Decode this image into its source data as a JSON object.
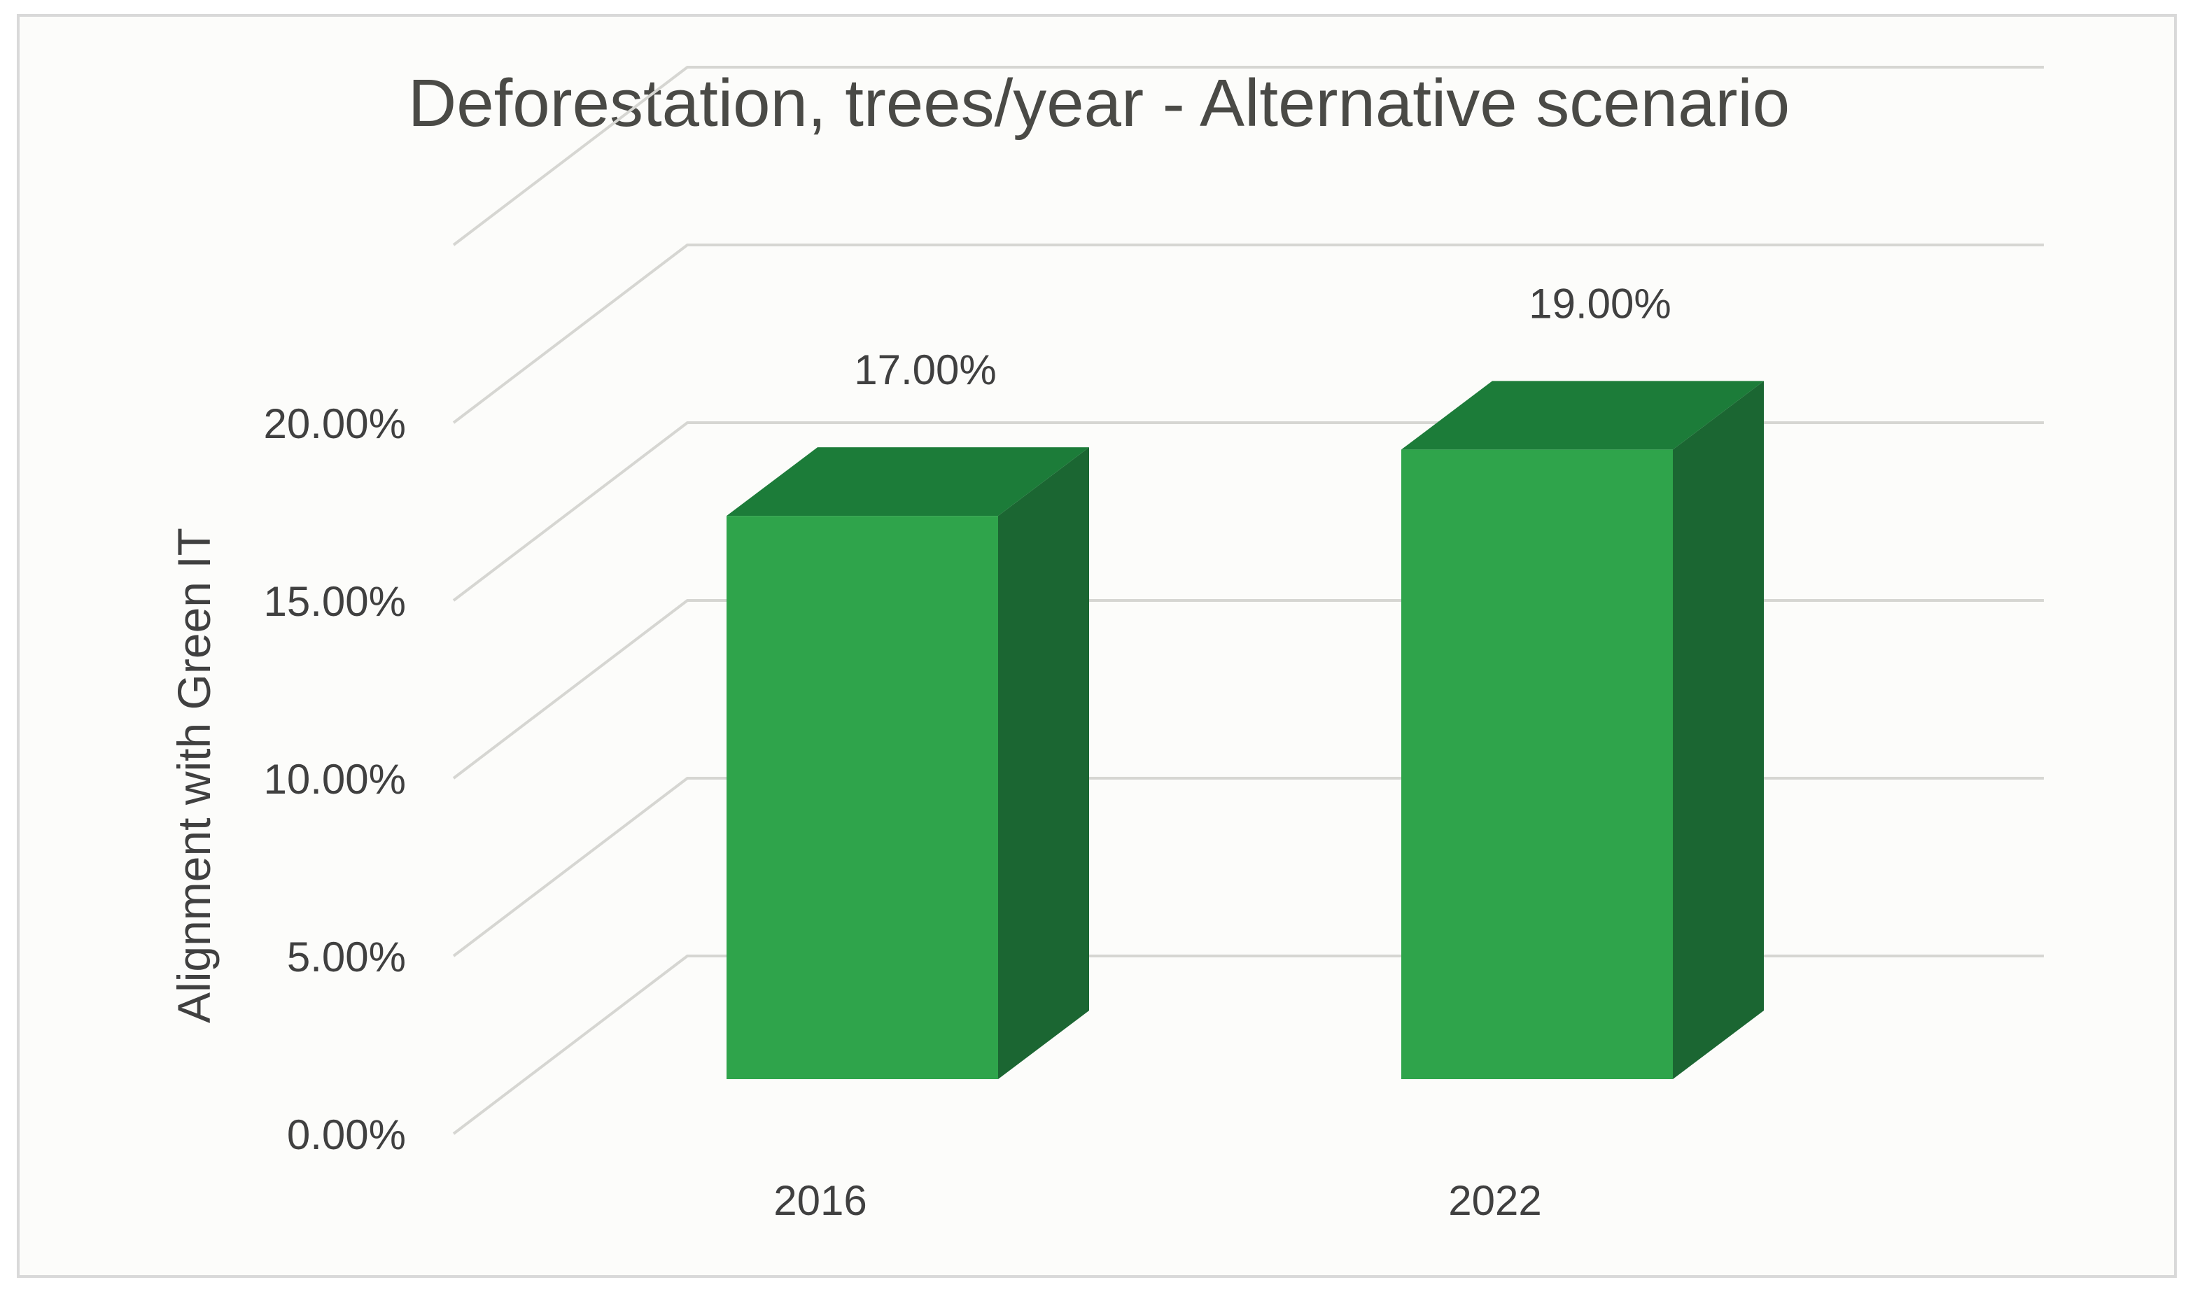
{
  "chart_data": {
    "type": "bar",
    "title": "Deforestation, trees/year - Alternative scenario",
    "xlabel": "",
    "ylabel": "Alignment with Green IT",
    "categories": [
      "2016",
      "2022"
    ],
    "series": [
      {
        "values": [
          17.0,
          19.0
        ]
      }
    ],
    "data_labels": [
      "17.00%",
      "19.00%"
    ],
    "ylim": [
      0,
      20
    ],
    "yticks": [
      0,
      5,
      10,
      15,
      20
    ],
    "ytick_labels": [
      "0.00%",
      "5.00%",
      "10.00%",
      "15.00%",
      "20.00%"
    ],
    "grid": true,
    "three_d": true,
    "legend": "none",
    "colors": {
      "bar_front": "#2fa44b",
      "bar_top": "#1c7c39",
      "bar_side": "#1b6632",
      "grid": "#d6d6d2",
      "text": "#404040",
      "title": "#4a4a46",
      "background": "#fcfcfa",
      "border": "#d9d9d9"
    }
  }
}
